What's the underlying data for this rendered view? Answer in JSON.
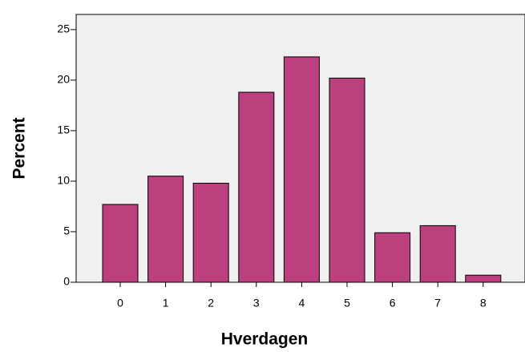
{
  "chart_data": {
    "type": "bar",
    "x_label": "Hverdagen",
    "y_label": "Percent",
    "categories": [
      "0",
      "1",
      "2",
      "3",
      "4",
      "5",
      "6",
      "7",
      "8"
    ],
    "values": [
      7.7,
      10.5,
      9.8,
      18.8,
      22.3,
      20.2,
      4.9,
      5.6,
      0.7
    ],
    "color": "#bc3f7e",
    "ylim": [
      0,
      26.5
    ],
    "yticks": [
      0,
      5,
      10,
      15,
      20,
      25
    ]
  }
}
